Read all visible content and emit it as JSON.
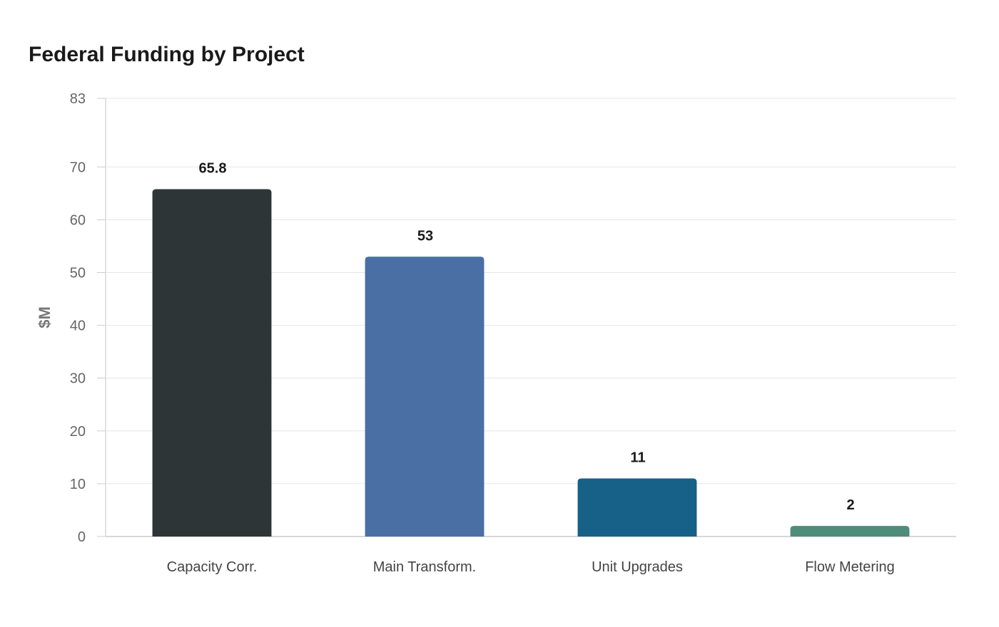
{
  "chart_data": {
    "type": "bar",
    "title": "Federal Funding by Project",
    "xlabel": "",
    "ylabel": "$M",
    "categories": [
      "Capacity Corr.",
      "Main Transform.",
      "Unit Upgrades",
      "Flow Metering"
    ],
    "values": [
      65.8,
      53,
      11,
      2
    ],
    "value_labels": [
      "65.8",
      "53",
      "11",
      "2"
    ],
    "colors": [
      "#2e3537",
      "#4a6fa5",
      "#176088",
      "#4f8c7a"
    ],
    "ylim": [
      0,
      83
    ],
    "yticks": [
      0,
      10,
      20,
      30,
      40,
      50,
      60,
      70,
      83
    ],
    "grid": true,
    "legend": "none"
  }
}
